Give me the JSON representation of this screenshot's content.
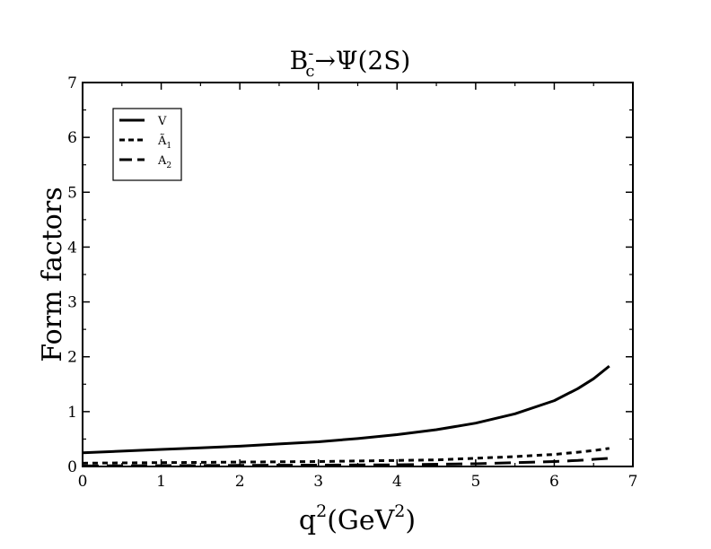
{
  "chart_data": {
    "type": "line",
    "title": {
      "base": "B",
      "sup": "-",
      "sub": "c",
      "arrow": "→",
      "rest": "Ψ(2S)"
    },
    "xlabel": {
      "base": "q",
      "sup": "2",
      "open": "(GeV",
      "sup2": "2",
      "close": ")"
    },
    "ylabel": "Form factors",
    "xlim": [
      0,
      7
    ],
    "ylim": [
      0,
      7
    ],
    "xticks": [
      0,
      1,
      2,
      3,
      4,
      5,
      6,
      7
    ],
    "yticks": [
      0,
      1,
      2,
      3,
      4,
      5,
      6,
      7
    ],
    "grid": false,
    "legend_position": "top-left",
    "series": [
      {
        "name": "V",
        "style": "solid",
        "x": [
          0,
          0.5,
          1,
          1.5,
          2,
          2.5,
          3,
          3.5,
          4,
          4.5,
          5,
          5.5,
          6,
          6.3,
          6.5,
          6.7
        ],
        "y": [
          0.25,
          0.28,
          0.31,
          0.34,
          0.37,
          0.41,
          0.45,
          0.51,
          0.58,
          0.67,
          0.79,
          0.96,
          1.2,
          1.42,
          1.6,
          1.83
        ]
      },
      {
        "name": "Ã",
        "sub": "1",
        "style": "dotted",
        "x": [
          0,
          1,
          2,
          3,
          4,
          4.5,
          5,
          5.5,
          6,
          6.3,
          6.5,
          6.7
        ],
        "y": [
          0.06,
          0.07,
          0.08,
          0.09,
          0.11,
          0.12,
          0.15,
          0.18,
          0.22,
          0.26,
          0.29,
          0.33
        ]
      },
      {
        "name": "A",
        "sub": "2",
        "style": "dashed",
        "x": [
          0,
          1,
          2,
          3,
          4,
          5,
          5.5,
          6,
          6.3,
          6.5,
          6.7
        ],
        "y": [
          0.01,
          0.015,
          0.02,
          0.025,
          0.03,
          0.05,
          0.07,
          0.09,
          0.11,
          0.13,
          0.15
        ]
      }
    ]
  }
}
